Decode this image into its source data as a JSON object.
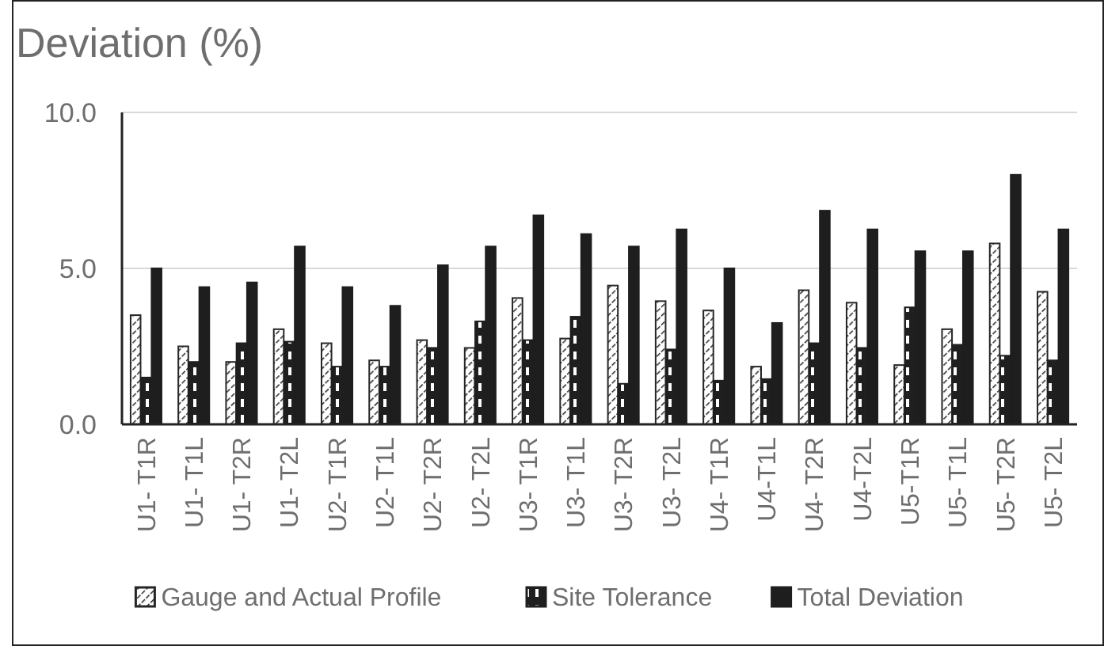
{
  "chart_data": {
    "type": "bar",
    "title": "Deviation (%)",
    "categories": [
      "U1- T1R",
      "U1- T1L",
      "U1- T2R",
      "U1- T2L",
      "U2- T1R",
      "U2- T1L",
      "U2- T2R",
      "U2- T2L",
      "U3- T1R",
      "U3- T1L",
      "U3- T2R",
      "U3- T2L",
      "U4- T1R",
      "U4-T1L",
      "U4- T2R",
      "U4-T2L",
      "U5-T1R",
      "U5- T1L",
      "U5- T2R",
      "U5- T2L"
    ],
    "series": [
      {
        "name": "Gauge and Actual Profile",
        "color": "#262626",
        "values": [
          3.5,
          2.5,
          2.0,
          3.05,
          2.6,
          2.05,
          2.7,
          2.45,
          4.05,
          2.75,
          4.45,
          3.95,
          3.65,
          1.85,
          4.3,
          3.9,
          1.9,
          3.05,
          5.8,
          4.25
        ]
      },
      {
        "name": "Site Tolerance",
        "color": "#1f1f1f",
        "values": [
          1.5,
          2.0,
          2.6,
          2.65,
          1.85,
          1.85,
          2.45,
          3.3,
          2.7,
          3.45,
          1.3,
          2.4,
          1.4,
          1.45,
          2.6,
          2.45,
          3.75,
          2.55,
          2.2,
          2.05
        ]
      },
      {
        "name": "Total Deviation",
        "color": "#1e1e1e",
        "values": [
          5.0,
          4.4,
          4.55,
          5.7,
          4.4,
          3.8,
          5.1,
          5.7,
          6.7,
          6.1,
          5.7,
          6.25,
          5.0,
          3.25,
          6.85,
          6.25,
          5.55,
          5.55,
          8.0,
          6.25
        ]
      }
    ],
    "ylim": [
      0,
      10
    ],
    "yticks": [
      {
        "value": 0,
        "label": "0.0"
      },
      {
        "value": 5,
        "label": "5.0"
      },
      {
        "value": 10,
        "label": "10.0"
      }
    ],
    "grid": "y",
    "legend": "bottom"
  }
}
